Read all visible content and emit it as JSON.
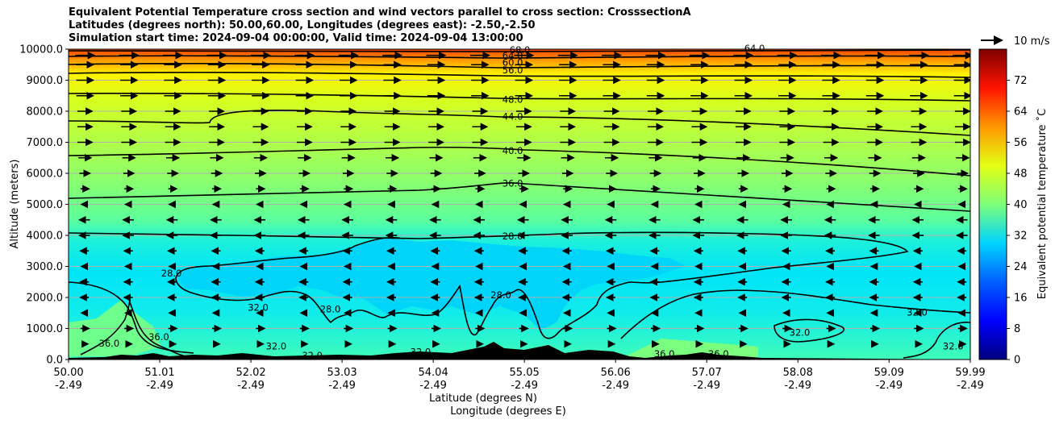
{
  "header": {
    "title_line1": "Equivalent Potential Temperature cross section and wind vectors parallel to cross section: CrosssectionA",
    "title_line2": "Latitudes (degrees north): 50.00,60.00, Longitudes (degrees east): -2.50,-2.50",
    "title_line3": "Simulation start time: 2024-09-04 00:00:00, Valid time: 2024-09-04 13:00:00"
  },
  "chart_data": {
    "type": "heatmap",
    "subtype": "filled contour cross section with contour lines and wind vectors",
    "xlabel": "Latitude (degrees N)",
    "xlabel2": "Longitude (degrees E)",
    "ylabel": "Altitude (meters)",
    "xlim": [
      50.0,
      59.99
    ],
    "ylim": [
      0,
      10000
    ],
    "x_ticks": [
      {
        "lat": "50.00",
        "lon": "-2.49",
        "value": 50.0
      },
      {
        "lat": "51.01",
        "lon": "-2.49",
        "value": 51.01
      },
      {
        "lat": "52.02",
        "lon": "-2.49",
        "value": 52.02
      },
      {
        "lat": "53.03",
        "lon": "-2.49",
        "value": 53.03
      },
      {
        "lat": "54.04",
        "lon": "-2.49",
        "value": 54.04
      },
      {
        "lat": "55.05",
        "lon": "-2.49",
        "value": 55.05
      },
      {
        "lat": "56.06",
        "lon": "-2.49",
        "value": 56.06
      },
      {
        "lat": "57.07",
        "lon": "-2.49",
        "value": 57.07
      },
      {
        "lat": "58.08",
        "lon": "-2.49",
        "value": 58.08
      },
      {
        "lat": "59.09",
        "lon": "-2.49",
        "value": 59.09
      },
      {
        "lat": "59.99",
        "lon": "-2.49",
        "value": 59.99
      }
    ],
    "y_ticks": [
      {
        "label": "0.0",
        "value": 0
      },
      {
        "label": "1000.0",
        "value": 1000
      },
      {
        "label": "2000.0",
        "value": 2000
      },
      {
        "label": "3000.0",
        "value": 3000
      },
      {
        "label": "4000.0",
        "value": 4000
      },
      {
        "label": "5000.0",
        "value": 5000
      },
      {
        "label": "6000.0",
        "value": 6000
      },
      {
        "label": "7000.0",
        "value": 7000
      },
      {
        "label": "8000.0",
        "value": 8000
      },
      {
        "label": "9000.0",
        "value": 9000
      },
      {
        "label": "10000.0",
        "value": 10000
      }
    ],
    "grid": "horizontal",
    "colorbar": {
      "label": "Equivalent potential temperature $^\\circ$C",
      "label_display": "Equivalent potential temperature ˚C",
      "range": [
        0,
        80
      ],
      "ticks": [
        "0",
        "8",
        "16",
        "24",
        "32",
        "40",
        "48",
        "56",
        "64",
        "72"
      ],
      "colormap": "jet",
      "colors": [
        "#00007f",
        "#0000ff",
        "#007fff",
        "#00ffff",
        "#7fff7f",
        "#ffff00",
        "#ff7f00",
        "#ff0000",
        "#7f0000"
      ]
    },
    "wind_key": {
      "label": "10 m/s",
      "value": 10,
      "position": "top-right"
    },
    "contour_lines": [
      {
        "level": 28,
        "label": "28.0",
        "y_at_label": 3850
      },
      {
        "level": 36,
        "label": "36.0",
        "y_at_label": 5700
      },
      {
        "level": 40,
        "label": "40.0",
        "y_at_label": 6550
      },
      {
        "level": 44,
        "label": "44.0",
        "y_at_label": 7800
      },
      {
        "level": 48,
        "label": "48.0",
        "y_at_label": 8350
      },
      {
        "level": 56,
        "label": "56.0",
        "y_at_label": 9300
      },
      {
        "level": 60,
        "label": "60.0",
        "y_at_label": 9600
      },
      {
        "level": 64,
        "label": "64.0",
        "y_at_label": 9800
      },
      {
        "level": 68,
        "label": "68.0",
        "y_at_label": 9950
      }
    ],
    "contour_labels": [
      {
        "text": "68.0",
        "x": 55.0,
        "y": 9950
      },
      {
        "text": "64.0",
        "x": 54.92,
        "y": 9770
      },
      {
        "text": "60.0",
        "x": 54.92,
        "y": 9550
      },
      {
        "text": "56.0",
        "x": 54.92,
        "y": 9300
      },
      {
        "text": "64.0",
        "x": 57.6,
        "y": 10000
      },
      {
        "text": "48.0",
        "x": 54.92,
        "y": 8350
      },
      {
        "text": "44.0",
        "x": 54.92,
        "y": 7800
      },
      {
        "text": "40.0",
        "x": 54.92,
        "y": 6700
      },
      {
        "text": "36.0",
        "x": 54.92,
        "y": 5650
      },
      {
        "text": "28.0",
        "x": 54.92,
        "y": 3950
      },
      {
        "text": "28.0",
        "x": 51.14,
        "y": 2750
      },
      {
        "text": "28.0",
        "x": 54.79,
        "y": 2050
      },
      {
        "text": "28.0",
        "x": 52.9,
        "y": 1600
      },
      {
        "text": "32.0",
        "x": 59.4,
        "y": 1500
      },
      {
        "text": "32.0",
        "x": 58.1,
        "y": 850
      },
      {
        "text": "32.0",
        "x": 59.8,
        "y": 400
      },
      {
        "text": "32.0",
        "x": 52.1,
        "y": 1650
      },
      {
        "text": "32.0",
        "x": 52.3,
        "y": 400
      },
      {
        "text": "32.0",
        "x": 53.9,
        "y": 220
      },
      {
        "text": "32.0",
        "x": 52.7,
        "y": 100
      },
      {
        "text": "36.0",
        "x": 50.45,
        "y": 500
      },
      {
        "text": "36.0",
        "x": 51.0,
        "y": 700
      },
      {
        "text": "36.0",
        "x": 56.6,
        "y": 150
      },
      {
        "text": "36.0",
        "x": 57.2,
        "y": 150
      }
    ],
    "wind_vectors": [
      {
        "y": 9800,
        "u": 9
      },
      {
        "y": 9500,
        "u": 8
      },
      {
        "y": 9000,
        "u": 8
      },
      {
        "y": 8500,
        "u": 8
      },
      {
        "y": 8000,
        "u": 7
      },
      {
        "y": 7500,
        "u": 7
      },
      {
        "y": 7000,
        "u": 7
      },
      {
        "y": 6500,
        "u": 6
      },
      {
        "y": 6000,
        "u": 5
      },
      {
        "y": 5500,
        "u": 4
      },
      {
        "y": 5000,
        "u": -3
      },
      {
        "y": 4500,
        "u": -5
      },
      {
        "y": 4000,
        "u": -5
      },
      {
        "y": 3500,
        "u": -4
      },
      {
        "y": 3000,
        "u": -3
      },
      {
        "y": 2500,
        "u": -4
      },
      {
        "y": 2000,
        "u": -4
      },
      {
        "y": 1500,
        "u": -3
      },
      {
        "y": 1000,
        "u": 4
      },
      {
        "y": 500,
        "u": 3
      }
    ]
  }
}
